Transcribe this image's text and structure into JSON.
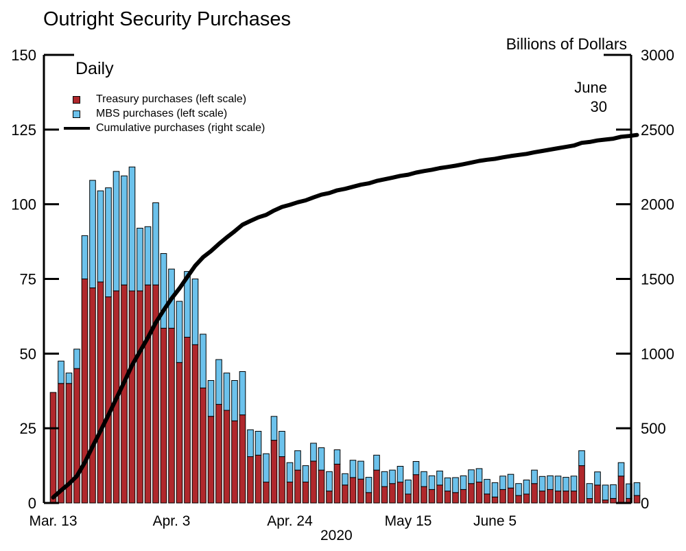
{
  "chart_data": {
    "type": "bar",
    "title": "Outright Security Purchases",
    "frequency_label": "Daily",
    "right_axis_units": "Billions of Dollars",
    "date_annotation": [
      "June",
      "30"
    ],
    "x_tick_labels": [
      "Mar. 13",
      "Apr. 3",
      "Apr. 24",
      "May 15",
      "June 5"
    ],
    "x_tick_index": [
      0,
      15,
      30,
      45,
      56
    ],
    "year_label": "2020",
    "left_axis": {
      "range": [
        0,
        150
      ],
      "ticks": [
        "0",
        "25",
        "50",
        "75",
        "100",
        "125",
        "150"
      ]
    },
    "right_axis": {
      "range": [
        0,
        3000
      ],
      "ticks": [
        "0",
        "500",
        "1000",
        "1500",
        "2000",
        "2500",
        "3000"
      ]
    },
    "legend": [
      "Treasury purchases (left scale)",
      "MBS purchases (left scale)",
      "Cumulative purchases (right scale)"
    ],
    "colors": {
      "treasury": "#b0282c",
      "mbs": "#6cc2ec",
      "cumulative": "#000000"
    },
    "stacked": true,
    "series": [
      {
        "name": "Treasury purchases (left scale)",
        "values": [
          37,
          40,
          40,
          45,
          75,
          72,
          74,
          69,
          71,
          73,
          71,
          71,
          73,
          73,
          58.5,
          58.5,
          47,
          55.5,
          53,
          38.5,
          29,
          33,
          31,
          27.5,
          29.5,
          15.5,
          16,
          7,
          21,
          15.5,
          7,
          11,
          7,
          14,
          11,
          4,
          13,
          6,
          8.5,
          8,
          3.5,
          11,
          5.5,
          6.5,
          7,
          3,
          9.5,
          5.5,
          4.5,
          6,
          4,
          3.5,
          4.5,
          6.5,
          7,
          3,
          2,
          4.5,
          5,
          2.5,
          3,
          6.5,
          4,
          4.5,
          4,
          4,
          4,
          12.5,
          1.5,
          6,
          1,
          1.5,
          9,
          1.5,
          2.5
        ]
      },
      {
        "name": "MBS purchases (left scale)",
        "values": [
          0,
          7.5,
          3.5,
          6.5,
          14.5,
          36,
          30.5,
          36.5,
          40,
          36.5,
          41.5,
          21,
          19.5,
          27.5,
          25,
          19.8,
          20.5,
          22,
          22,
          18,
          12,
          15,
          12.5,
          13.5,
          14.5,
          9,
          8,
          9.5,
          8,
          8.5,
          6.5,
          6.5,
          5.5,
          6,
          7.5,
          6.5,
          4.8,
          3.8,
          5.8,
          6,
          5.1,
          5,
          5,
          4.5,
          5.3,
          4.7,
          4.4,
          5,
          4.6,
          4.7,
          4.4,
          5,
          4.6,
          4.6,
          4.5,
          4.9,
          4.8,
          4.5,
          4.6,
          4,
          4.7,
          4.5,
          4.9,
          4.6,
          5,
          4.6,
          5,
          5,
          5,
          4.4,
          5,
          4.6,
          4.5,
          4.9,
          4.3
        ]
      },
      {
        "name": "Cumulative purchases (right scale)",
        "values": [
          37,
          84,
          128,
          180,
          270,
          378,
          482,
          588,
          699,
          809,
          922,
          1014,
          1106,
          1207,
          1290,
          1368,
          1436,
          1513,
          1588,
          1645,
          1686,
          1734,
          1778,
          1819,
          1863,
          1888,
          1912,
          1929,
          1958,
          1982,
          1996,
          2013,
          2026,
          2046,
          2064,
          2075,
          2093,
          2103,
          2117,
          2131,
          2140,
          2156,
          2167,
          2178,
          2190,
          2198,
          2212,
          2222,
          2231,
          2242,
          2250,
          2258,
          2268,
          2279,
          2290,
          2298,
          2304,
          2314,
          2323,
          2330,
          2337,
          2348,
          2357,
          2366,
          2375,
          2384,
          2393,
          2411,
          2417,
          2427,
          2433,
          2439,
          2452,
          2457,
          2464
        ]
      }
    ]
  }
}
